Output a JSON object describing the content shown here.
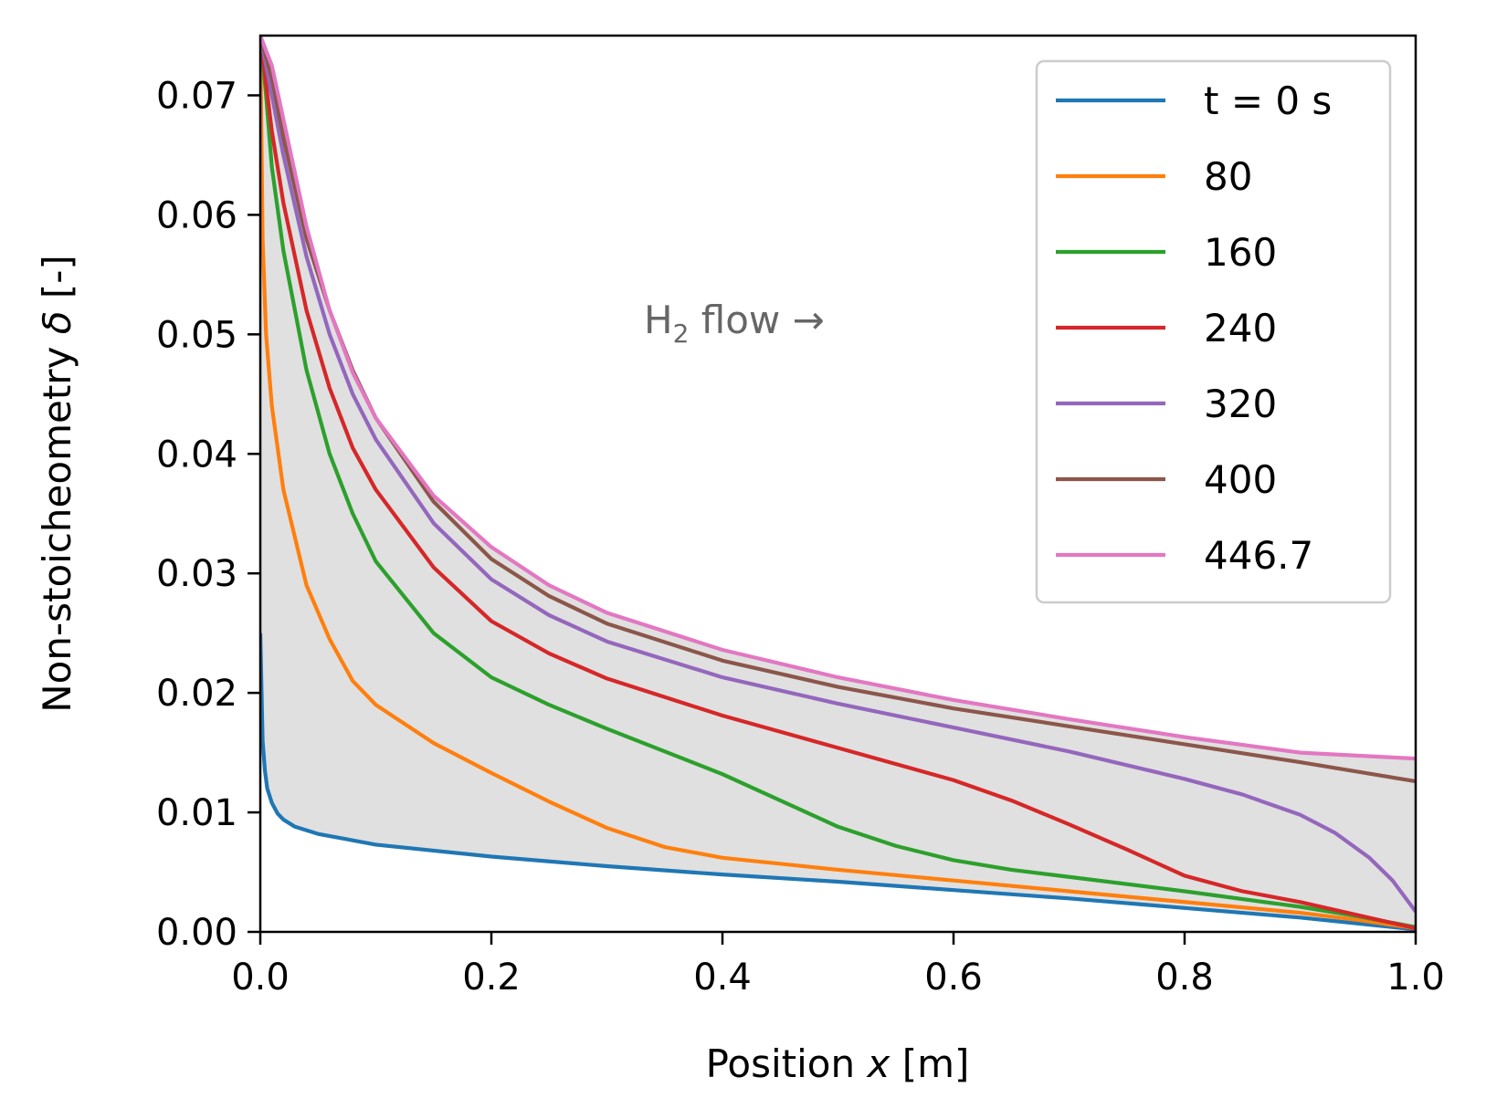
{
  "chart_data": {
    "type": "line",
    "xlabel": {
      "main": "Position ",
      "var": "x",
      "unit": " [m]"
    },
    "ylabel": {
      "main": "Non-stoicheometry ",
      "var": "δ",
      "unit": " [-]"
    },
    "xlim": [
      0.0,
      1.0
    ],
    "ylim": [
      0.0,
      0.075
    ],
    "x_ticks": [
      0.0,
      0.2,
      0.4,
      0.6,
      0.8,
      1.0
    ],
    "x_tick_labels": [
      "0.0",
      "0.2",
      "0.4",
      "0.6",
      "0.8",
      "1.0"
    ],
    "y_ticks": [
      0.0,
      0.01,
      0.02,
      0.03,
      0.04,
      0.05,
      0.06,
      0.07
    ],
    "y_tick_labels": [
      "0.00",
      "0.01",
      "0.02",
      "0.03",
      "0.04",
      "0.05",
      "0.06",
      "0.07"
    ],
    "grid": false,
    "legend_position": "top-right",
    "shaded_region": {
      "between_series": [
        0,
        6
      ],
      "color": "#e0e0e0"
    },
    "annotation": {
      "main": "H",
      "sub": "2",
      "rest": " flow  →"
    },
    "series": [
      {
        "name": "t = 0 s",
        "color": "#1f77b4",
        "x": [
          0.0,
          0.002,
          0.004,
          0.006,
          0.01,
          0.015,
          0.02,
          0.03,
          0.05,
          0.1,
          0.2,
          0.3,
          0.4,
          0.5,
          0.6,
          0.7,
          0.8,
          0.9,
          1.0
        ],
        "y": [
          0.025,
          0.016,
          0.0135,
          0.012,
          0.0108,
          0.0099,
          0.0094,
          0.0088,
          0.0082,
          0.0073,
          0.0063,
          0.0055,
          0.0048,
          0.0042,
          0.0035,
          0.0028,
          0.002,
          0.0012,
          0.0002
        ]
      },
      {
        "name": "80",
        "color": "#ff7f0e",
        "x": [
          0.0,
          0.002,
          0.005,
          0.01,
          0.02,
          0.04,
          0.06,
          0.08,
          0.1,
          0.15,
          0.2,
          0.25,
          0.3,
          0.35,
          0.4,
          0.5,
          0.6,
          0.7,
          0.8,
          0.9,
          0.95,
          1.0
        ],
        "y": [
          0.075,
          0.058,
          0.05,
          0.044,
          0.037,
          0.029,
          0.0245,
          0.021,
          0.019,
          0.0158,
          0.0133,
          0.0109,
          0.0087,
          0.0071,
          0.0062,
          0.0052,
          0.0043,
          0.0034,
          0.0025,
          0.0016,
          0.001,
          0.0003
        ]
      },
      {
        "name": "160",
        "color": "#2ca02c",
        "x": [
          0.0,
          0.005,
          0.01,
          0.02,
          0.04,
          0.06,
          0.08,
          0.1,
          0.15,
          0.2,
          0.25,
          0.3,
          0.4,
          0.5,
          0.55,
          0.6,
          0.65,
          0.7,
          0.8,
          0.9,
          0.95,
          1.0
        ],
        "y": [
          0.075,
          0.07,
          0.064,
          0.057,
          0.047,
          0.04,
          0.035,
          0.031,
          0.025,
          0.0213,
          0.019,
          0.017,
          0.0132,
          0.0088,
          0.0072,
          0.006,
          0.0052,
          0.0046,
          0.0034,
          0.0021,
          0.0013,
          0.0004
        ]
      },
      {
        "name": "240",
        "color": "#d62728",
        "x": [
          0.0,
          0.01,
          0.02,
          0.04,
          0.06,
          0.08,
          0.1,
          0.15,
          0.2,
          0.25,
          0.3,
          0.4,
          0.5,
          0.6,
          0.65,
          0.7,
          0.75,
          0.8,
          0.85,
          0.9,
          0.95,
          1.0
        ],
        "y": [
          0.075,
          0.067,
          0.061,
          0.052,
          0.0455,
          0.0405,
          0.037,
          0.0305,
          0.026,
          0.0233,
          0.0212,
          0.0181,
          0.0154,
          0.0127,
          0.011,
          0.009,
          0.0069,
          0.0047,
          0.0034,
          0.0025,
          0.0014,
          0.0003
        ]
      },
      {
        "name": "320",
        "color": "#9467bd",
        "x": [
          0.0,
          0.01,
          0.02,
          0.04,
          0.06,
          0.08,
          0.1,
          0.15,
          0.2,
          0.25,
          0.3,
          0.4,
          0.5,
          0.6,
          0.7,
          0.8,
          0.85,
          0.9,
          0.93,
          0.96,
          0.98,
          1.0
        ],
        "y": [
          0.075,
          0.07,
          0.065,
          0.0565,
          0.05,
          0.045,
          0.0412,
          0.0342,
          0.0295,
          0.0265,
          0.0243,
          0.0213,
          0.0191,
          0.0171,
          0.0151,
          0.0128,
          0.0115,
          0.0098,
          0.0083,
          0.0062,
          0.0043,
          0.0017
        ]
      },
      {
        "name": "400",
        "color": "#8c564b",
        "x": [
          0.0,
          0.01,
          0.02,
          0.04,
          0.06,
          0.08,
          0.1,
          0.15,
          0.2,
          0.25,
          0.3,
          0.4,
          0.5,
          0.6,
          0.7,
          0.8,
          0.9,
          1.0
        ],
        "y": [
          0.075,
          0.0715,
          0.0665,
          0.058,
          0.052,
          0.047,
          0.043,
          0.036,
          0.0312,
          0.0281,
          0.0258,
          0.0227,
          0.0205,
          0.0187,
          0.0172,
          0.0157,
          0.0142,
          0.0126
        ]
      },
      {
        "name": "446.7",
        "color": "#e377c2",
        "x": [
          0.0,
          0.01,
          0.02,
          0.04,
          0.06,
          0.08,
          0.1,
          0.15,
          0.2,
          0.25,
          0.3,
          0.4,
          0.5,
          0.6,
          0.7,
          0.8,
          0.9,
          1.0
        ],
        "y": [
          0.075,
          0.0725,
          0.068,
          0.059,
          0.052,
          0.0468,
          0.043,
          0.0365,
          0.0322,
          0.029,
          0.0267,
          0.0236,
          0.0213,
          0.0194,
          0.0178,
          0.0163,
          0.015,
          0.0145
        ]
      }
    ]
  }
}
